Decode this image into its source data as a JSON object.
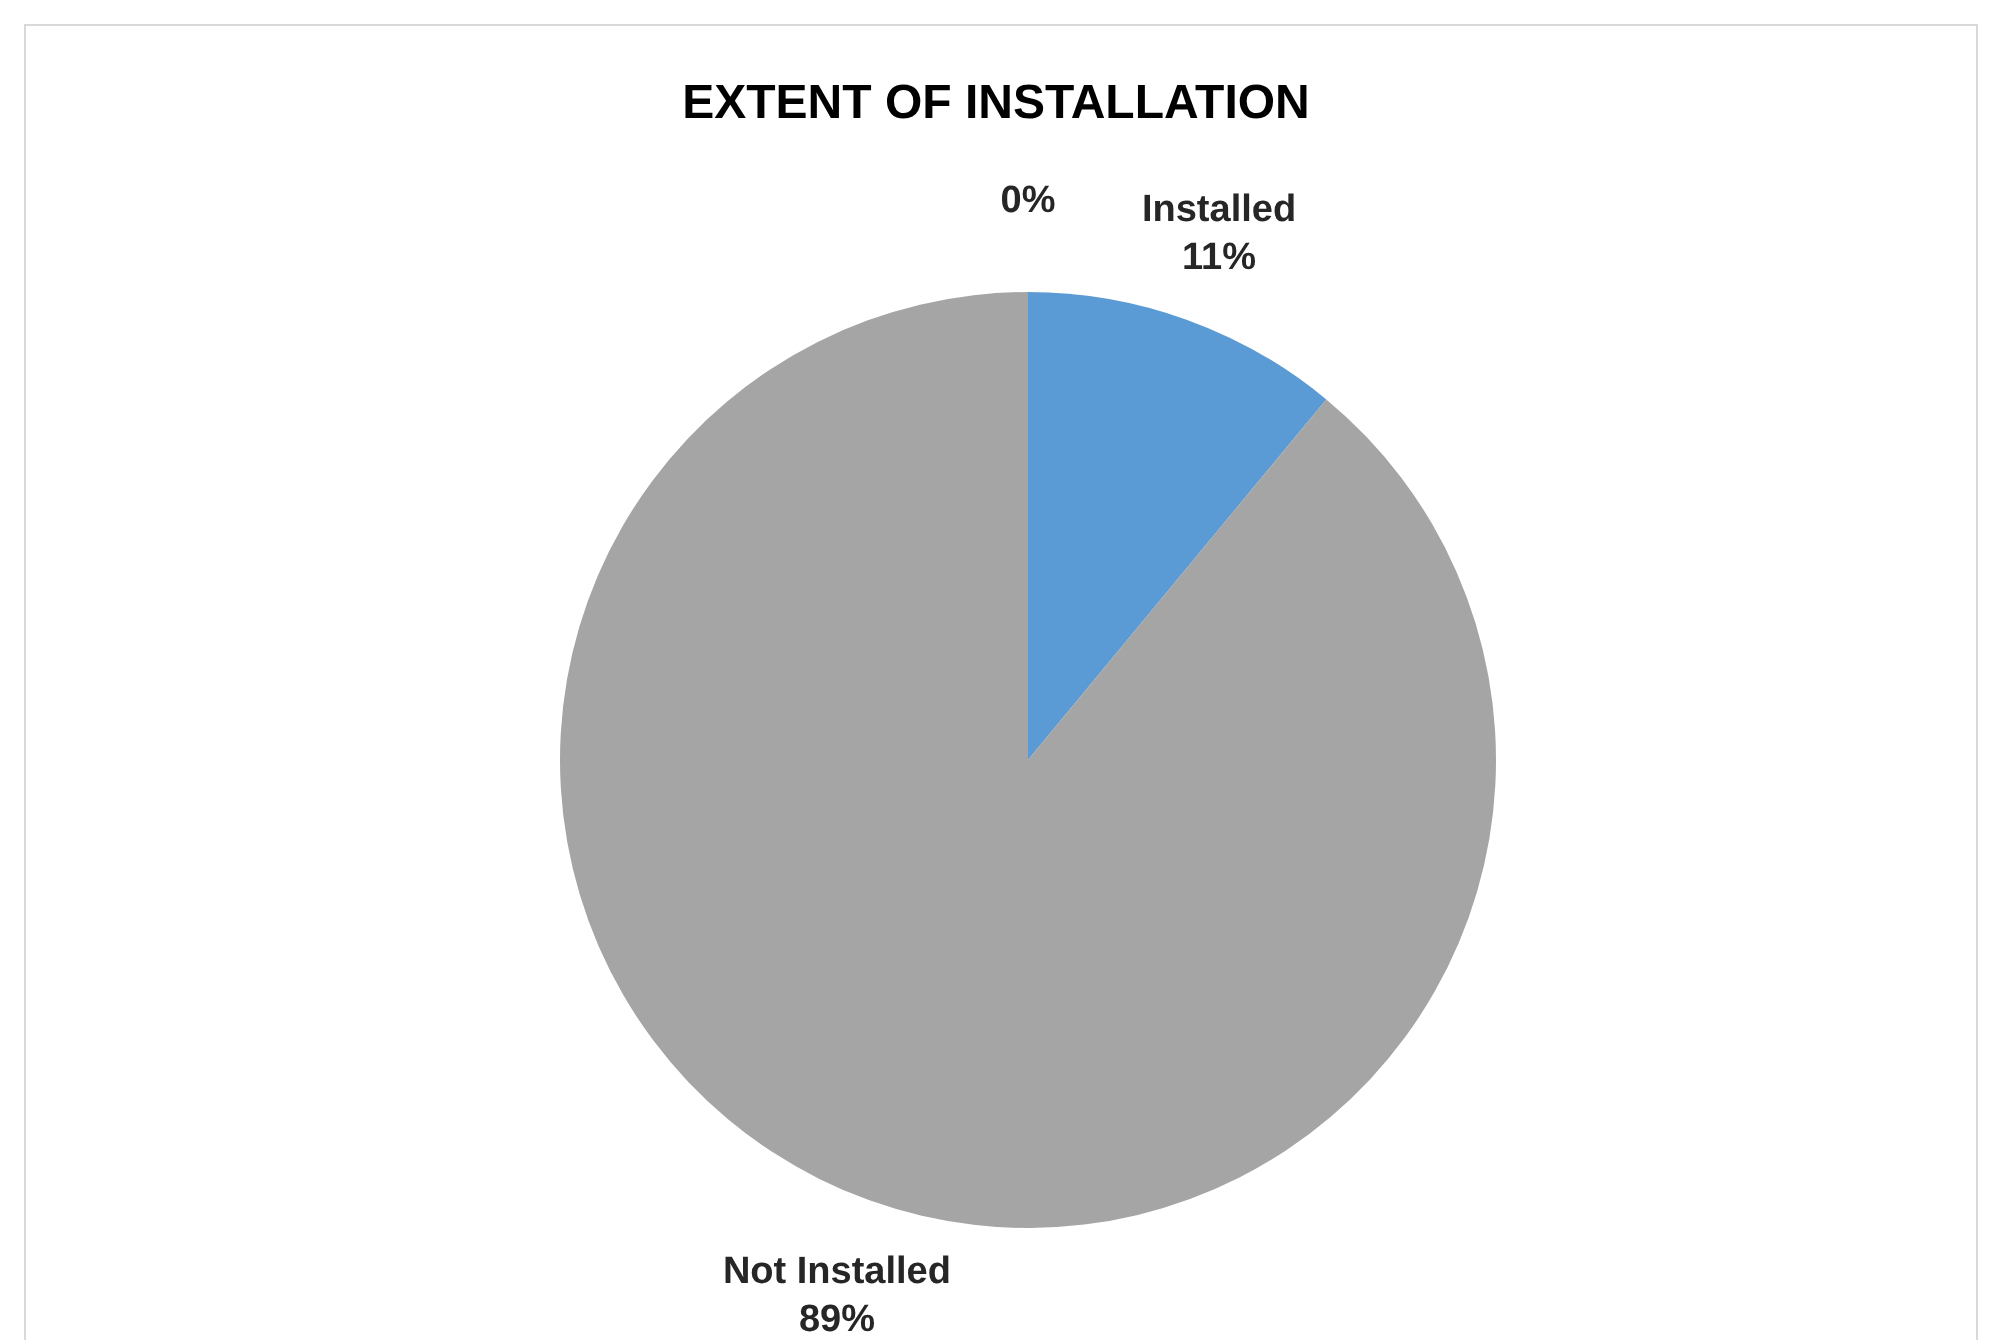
{
  "chart_data": {
    "type": "pie",
    "title": "EXTENT OF INSTALLATION",
    "categories": [
      "Installed",
      "Not Installed",
      null
    ],
    "values": [
      11,
      89,
      0
    ],
    "colors": [
      "#5b9bd5",
      "#a5a5a5",
      "#ffc000"
    ],
    "value_labels": [
      "11%",
      "89%",
      "0%"
    ]
  }
}
